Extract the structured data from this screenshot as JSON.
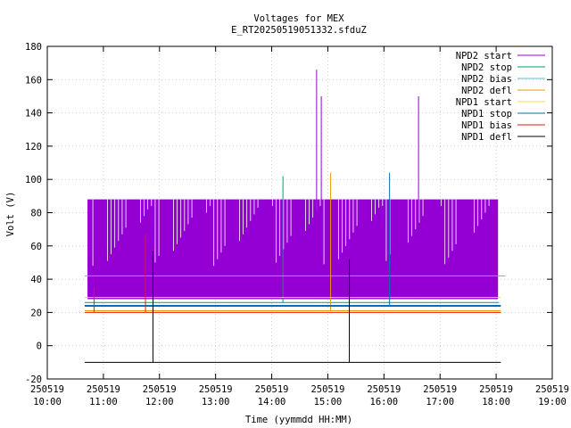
{
  "chart_data": {
    "type": "line",
    "title": "Voltages for MEX",
    "subtitle": "E_RT20250519051332.sfduZ",
    "xlabel": "Time (yymmdd HH:MM)",
    "ylabel": "Volt (V)",
    "xlim": [
      "250519 10:00",
      "250519 19:00"
    ],
    "ylim": [
      -20,
      180
    ],
    "x_ticks": [
      {
        "date": "250519",
        "time": "10:00"
      },
      {
        "date": "250519",
        "time": "11:00"
      },
      {
        "date": "250519",
        "time": "12:00"
      },
      {
        "date": "250519",
        "time": "13:00"
      },
      {
        "date": "250519",
        "time": "14:00"
      },
      {
        "date": "250519",
        "time": "15:00"
      },
      {
        "date": "250519",
        "time": "16:00"
      },
      {
        "date": "250519",
        "time": "17:00"
      },
      {
        "date": "250519",
        "time": "18:00"
      },
      {
        "date": "250519",
        "time": "19:00"
      }
    ],
    "y_ticks": [
      "-20",
      "0",
      "20",
      "40",
      "60",
      "80",
      "100",
      "120",
      "140",
      "160",
      "180"
    ],
    "legend_position": "top-right",
    "series": [
      {
        "name": "NPD2 start",
        "color": "#9400d3",
        "baseline": 28,
        "high": 88,
        "data_start": "250519 10:43",
        "data_end": "250519 18:02",
        "spikes": [
          [
            "250519 14:48",
            166
          ],
          [
            "250519 14:53",
            150
          ],
          [
            "250519 16:37",
            150
          ]
        ]
      },
      {
        "name": "NPD2 stop",
        "color": "#009e73",
        "baseline": 26,
        "data_start": "250519 10:40",
        "data_end": "250519 18:03",
        "spikes": [
          [
            "250519 14:12",
            102
          ]
        ]
      },
      {
        "name": "NPD2 bias",
        "color": "#56b4e9",
        "baseline": 42,
        "data_start": "250519 10:40",
        "data_end": "250519 18:10",
        "spikes": []
      },
      {
        "name": "NPD2 defl",
        "color": "#e69f00",
        "baseline": 21,
        "data_start": "250519 10:40",
        "data_end": "250519 18:05",
        "spikes": [
          [
            "250519 15:03",
            104
          ]
        ]
      },
      {
        "name": "NPD1 start",
        "color": "#f0e442",
        "baseline": 29,
        "data_start": "250519 10:40",
        "data_end": "250519 18:05",
        "spikes": []
      },
      {
        "name": "NPD1 stop",
        "color": "#0072b2",
        "baseline": 24,
        "data_start": "250519 10:40",
        "data_end": "250519 18:05",
        "spikes": [
          [
            "250519 16:06",
            104
          ]
        ]
      },
      {
        "name": "NPD1 bias",
        "color": "#e51e10",
        "baseline": 20,
        "data_start": "250519 10:40",
        "data_end": "250519 18:05",
        "spikes": [
          [
            "250519 11:45",
            67
          ],
          [
            "250519 10:50",
            35
          ]
        ]
      },
      {
        "name": "NPD1 defl",
        "color": "#000000",
        "baseline": -10,
        "data_start": "250519 10:40",
        "data_end": "250519 18:05",
        "spikes": [
          [
            "250519 11:53",
            57
          ],
          [
            "250519 15:23",
            52
          ]
        ]
      }
    ]
  }
}
